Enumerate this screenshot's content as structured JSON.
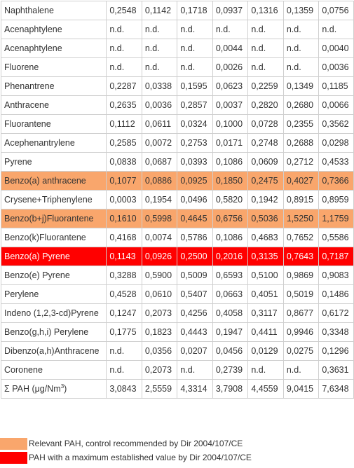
{
  "rows": [
    {
      "name": "Naphthalene",
      "values": [
        "0,2548",
        "0,1142",
        "0,1718",
        "0,0937",
        "0,1316",
        "0,1359",
        "0,0756"
      ],
      "highlight": ""
    },
    {
      "name": "Acenaphtylene",
      "values": [
        "n.d.",
        "n.d.",
        "n.d.",
        "n.d.",
        "n.d.",
        "n.d.",
        "n.d."
      ],
      "highlight": ""
    },
    {
      "name": "Acenaphtylene",
      "values": [
        "n.d.",
        "n.d.",
        "n.d.",
        "0,0044",
        "n.d.",
        "n.d.",
        "0,0040"
      ],
      "highlight": ""
    },
    {
      "name": "Fluorene",
      "values": [
        "n.d.",
        "n.d.",
        "n.d.",
        "0,0026",
        "n.d.",
        "n.d.",
        "0,0036"
      ],
      "highlight": ""
    },
    {
      "name": "Phenantrene",
      "values": [
        "0,2287",
        "0,0338",
        "0,1595",
        "0,0623",
        "0,2259",
        "0,1349",
        "0,1185"
      ],
      "highlight": ""
    },
    {
      "name": "Anthracene",
      "values": [
        "0,2635",
        "0,0036",
        "0,2857",
        "0,0037",
        "0,2820",
        "0,2680",
        "0,0066"
      ],
      "highlight": ""
    },
    {
      "name": "Fluorantene",
      "values": [
        "0,1112",
        "0,0611",
        "0,0324",
        "0,1000",
        "0,0728",
        "0,2355",
        "0,3562"
      ],
      "highlight": ""
    },
    {
      "name": "Acephenantrylene",
      "values": [
        "0,2585",
        "0,0072",
        "0,2753",
        "0,0171",
        "0,2748",
        "0,2688",
        "0,0298"
      ],
      "highlight": ""
    },
    {
      "name": "Pyrene",
      "values": [
        "0,0838",
        "0,0687",
        "0,0393",
        "0,1086",
        "0,0609",
        "0,2712",
        "0,4533"
      ],
      "highlight": ""
    },
    {
      "name": "Benzo(a) anthracene",
      "values": [
        "0,1077",
        "0,0886",
        "0,0925",
        "0,1850",
        "0,2475",
        "0,4027",
        "0,7366"
      ],
      "highlight": "orange"
    },
    {
      "name": "Crysene+Triphenylene",
      "values": [
        "0,0003",
        "0,1954",
        "0,0496",
        "0,5820",
        "0,1942",
        "0,8915",
        "0,8959"
      ],
      "highlight": ""
    },
    {
      "name": "Benzo(b+j)Fluorantene",
      "values": [
        "0,1610",
        "0,5998",
        "0,4645",
        "0,6756",
        "0,5036",
        "1,5250",
        "1,1759"
      ],
      "highlight": "orange"
    },
    {
      "name": "Benzo(k)Fluorantene",
      "values": [
        "0,4168",
        "0,0074",
        "0,5786",
        "0,1086",
        "0,4683",
        "0,7652",
        "0,5586"
      ],
      "highlight": ""
    },
    {
      "name": "Benzo(a) Pyrene",
      "values": [
        "0,1143",
        "0,0926",
        "0,2500",
        "0,2016",
        "0,3135",
        "0,7643",
        "0,7187"
      ],
      "highlight": "red"
    },
    {
      "name": "Benzo(e) Pyrene",
      "values": [
        "0,3288",
        "0,5900",
        "0,5009",
        "0,6593",
        "0,5100",
        "0,9869",
        "0,9083"
      ],
      "highlight": ""
    },
    {
      "name": "Perylene",
      "values": [
        "0,4528",
        "0,0610",
        "0,5407",
        "0,0663",
        "0,4051",
        "0,5019",
        "0,1486"
      ],
      "highlight": ""
    },
    {
      "name": "Indeno (1,2,3-cd)Pyrene",
      "values": [
        "0,1247",
        "0,2073",
        "0,4256",
        "0,4058",
        "0,3117",
        "0,8677",
        "0,6172"
      ],
      "highlight": ""
    },
    {
      "name": "Benzo(g,h,i) Perylene",
      "values": [
        "0,1775",
        "0,1823",
        "0,4443",
        "0,1947",
        "0,4411",
        "0,9946",
        "0,3348"
      ],
      "highlight": ""
    },
    {
      "name": "Dibenzo(a,h)Anthracene",
      "values": [
        "n.d.",
        "0,0356",
        "0,0207",
        "0,0456",
        "0,0129",
        "0,0275",
        "0,1296"
      ],
      "highlight": ""
    },
    {
      "name": "Coronene",
      "values": [
        "n.d.",
        "0,2073",
        "n.d.",
        "0,2739",
        "n.d.",
        "n.d.",
        "0,3631"
      ],
      "highlight": ""
    }
  ],
  "total": {
    "label_prefix": "Σ PAH (μg/Nm",
    "label_sup": "3",
    "label_suffix": ")",
    "values": [
      "3,0843",
      "2,5559",
      "4,3314",
      "3,7908",
      "4,4559",
      "9,0415",
      "7,6348"
    ]
  },
  "legend": {
    "orange_text": "Relevant PAH, control recommended by Dir 2004/107/CE",
    "red_text": "PAH with a maximum established value by Dir 2004/107/CE"
  },
  "colors": {
    "orange": "#f9a66c",
    "red": "#ff0000"
  }
}
